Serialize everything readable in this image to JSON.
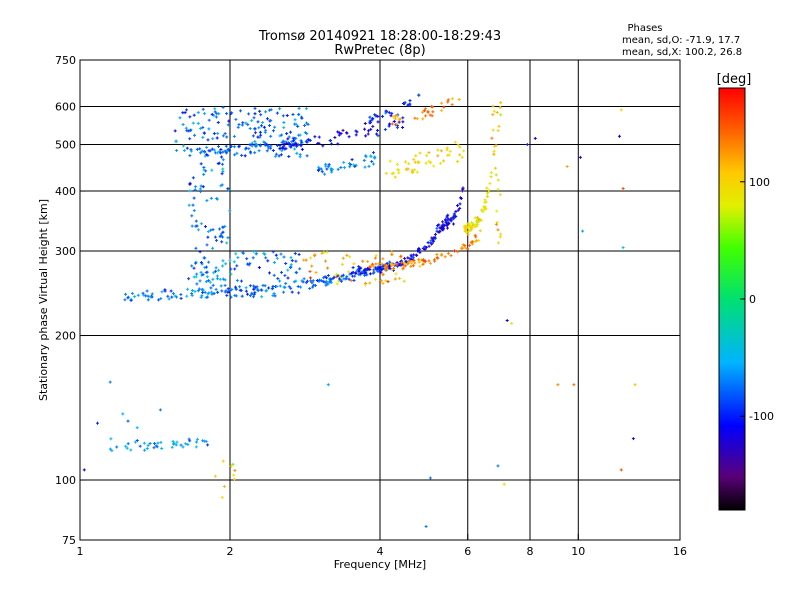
{
  "chart_data": {
    "type": "scatter",
    "title": "Tromsø 20140921 18:28:00-18:29:43",
    "subtitle": "RwPretec (8p)",
    "xlabel": "Frequency [MHz]",
    "ylabel": "Stationary phase Virtual Height [km]",
    "x_scale": "log",
    "y_scale": "log",
    "xlim": [
      1,
      16
    ],
    "ylim": [
      75,
      750
    ],
    "x_ticks": [
      1,
      2,
      4,
      6,
      8,
      10,
      16
    ],
    "y_ticks": [
      75,
      100,
      200,
      300,
      400,
      500,
      600,
      750
    ],
    "x_grid": [
      2,
      4,
      6,
      8,
      10
    ],
    "y_grid": [
      100,
      200,
      300,
      400,
      500,
      600
    ],
    "grid": true,
    "stats": {
      "title": "Phases",
      "line_o": "mean, sd,O: -71.9, 17.7",
      "line_x": "mean, sd,X: 100.2, 26.8"
    },
    "colorbar": {
      "label": "[deg]",
      "range": [
        -180,
        180
      ],
      "ticks": [
        100,
        0,
        -100
      ],
      "colormap": "rainbow"
    },
    "traces": [
      {
        "f_start": 1.15,
        "f_end": 1.82,
        "h_start": 117,
        "h_end": 120,
        "curve": 0.0,
        "count": 40,
        "phase": -60,
        "spread_h": 0.012
      },
      {
        "f_start": 1.22,
        "f_end": 2.9,
        "h_start": 240,
        "h_end": 258,
        "curve": 1.0,
        "count": 110,
        "phase": -75,
        "spread_h": 0.012
      },
      {
        "f_start": 2.9,
        "f_end": 4.2,
        "h_start": 258,
        "h_end": 280,
        "curve": 1.0,
        "count": 80,
        "phase": -80,
        "spread_h": 0.012
      },
      {
        "f_start": 3.5,
        "f_end": 5.5,
        "h_start": 272,
        "h_end": 360,
        "curve": 3.5,
        "count": 110,
        "phase": -110,
        "spread_h": 0.01
      },
      {
        "f_start": 3.8,
        "f_end": 6.4,
        "h_start": 278,
        "h_end": 325,
        "curve": 3.0,
        "count": 80,
        "phase": 130,
        "spread_h": 0.01
      },
      {
        "f_start": 5.2,
        "f_end": 5.9,
        "h_start": 335,
        "h_end": 410,
        "curve": 3.0,
        "count": 50,
        "phase": -110,
        "spread_h": 0.012
      },
      {
        "f_start": 5.9,
        "f_end": 6.8,
        "h_start": 330,
        "h_end": 500,
        "curve": 3.5,
        "count": 70,
        "phase": 90,
        "spread_h": 0.015
      },
      {
        "f_start": 1.7,
        "f_end": 2.9,
        "h_start": 480,
        "h_end": 510,
        "curve": 1.0,
        "count": 60,
        "phase": -80,
        "spread_h": 0.012
      },
      {
        "f_start": 2.5,
        "f_end": 4.5,
        "h_start": 500,
        "h_end": 560,
        "curve": 1.5,
        "count": 60,
        "phase": -110,
        "spread_h": 0.015
      },
      {
        "f_start": 3.8,
        "f_end": 4.8,
        "h_start": 560,
        "h_end": 640,
        "curve": 1.5,
        "count": 30,
        "phase": -100,
        "spread_h": 0.015
      },
      {
        "f_start": 4.2,
        "f_end": 5.8,
        "h_start": 560,
        "h_end": 640,
        "curve": 1.5,
        "count": 30,
        "phase": 130,
        "spread_h": 0.015
      },
      {
        "f_start": 3.0,
        "f_end": 4.0,
        "h_start": 440,
        "h_end": 470,
        "curve": 0.5,
        "count": 40,
        "phase": -70,
        "spread_h": 0.02
      },
      {
        "f_start": 4.0,
        "f_end": 5.9,
        "h_start": 440,
        "h_end": 490,
        "curve": 1.0,
        "count": 50,
        "phase": 100,
        "spread_h": 0.03
      }
    ],
    "clouds": [
      {
        "f": [
          1.55,
          2.9
        ],
        "h": [
          470,
          600
        ],
        "count": 180,
        "phase": -75,
        "phase_sd": 18
      },
      {
        "f": [
          1.65,
          2.0
        ],
        "h": [
          260,
          470
        ],
        "count": 90,
        "phase": -70,
        "phase_sd": 20
      },
      {
        "f": [
          1.7,
          2.8
        ],
        "h": [
          240,
          300
        ],
        "count": 90,
        "phase": -70,
        "phase_sd": 20
      },
      {
        "f": [
          2.8,
          4.5
        ],
        "h": [
          255,
          300
        ],
        "count": 60,
        "phase": 110,
        "phase_sd": 25
      },
      {
        "f": [
          1.85,
          2.05
        ],
        "h": [
          90,
          110
        ],
        "count": 8,
        "phase": 110,
        "phase_sd": 40
      },
      {
        "f": [
          1.05,
          1.35
        ],
        "h": [
          118,
          140
        ],
        "count": 6,
        "phase": -70,
        "phase_sd": 15
      },
      {
        "f": [
          6.7,
          7.0
        ],
        "h": [
          300,
          640
        ],
        "count": 25,
        "phase": 100,
        "phase_sd": 20
      }
    ],
    "points": [
      {
        "f": 1.02,
        "h": 105,
        "phase": -110
      },
      {
        "f": 1.15,
        "h": 160,
        "phase": -70
      },
      {
        "f": 1.45,
        "h": 140,
        "phase": -70
      },
      {
        "f": 3.15,
        "h": 158,
        "phase": -60
      },
      {
        "f": 5.05,
        "h": 101,
        "phase": -70
      },
      {
        "f": 4.95,
        "h": 80,
        "phase": -70
      },
      {
        "f": 7.2,
        "h": 215,
        "phase": -120
      },
      {
        "f": 7.35,
        "h": 212,
        "phase": 90
      },
      {
        "f": 7.1,
        "h": 98,
        "phase": 100
      },
      {
        "f": 6.9,
        "h": 107,
        "phase": -70
      },
      {
        "f": 7.9,
        "h": 500,
        "phase": -100
      },
      {
        "f": 8.2,
        "h": 515,
        "phase": -110
      },
      {
        "f": 9.1,
        "h": 158,
        "phase": 130
      },
      {
        "f": 9.8,
        "h": 158,
        "phase": 140
      },
      {
        "f": 10.1,
        "h": 470,
        "phase": -120
      },
      {
        "f": 10.2,
        "h": 330,
        "phase": -60
      },
      {
        "f": 9.5,
        "h": 450,
        "phase": 120
      },
      {
        "f": 12.1,
        "h": 520,
        "phase": -110
      },
      {
        "f": 12.2,
        "h": 590,
        "phase": 100
      },
      {
        "f": 12.3,
        "h": 405,
        "phase": 150
      },
      {
        "f": 12.3,
        "h": 305,
        "phase": -40
      },
      {
        "f": 13.0,
        "h": 158,
        "phase": 110
      },
      {
        "f": 12.9,
        "h": 122,
        "phase": -120
      },
      {
        "f": 12.2,
        "h": 105,
        "phase": 150
      },
      {
        "f": 1.93,
        "h": 92,
        "phase": 90
      }
    ]
  }
}
